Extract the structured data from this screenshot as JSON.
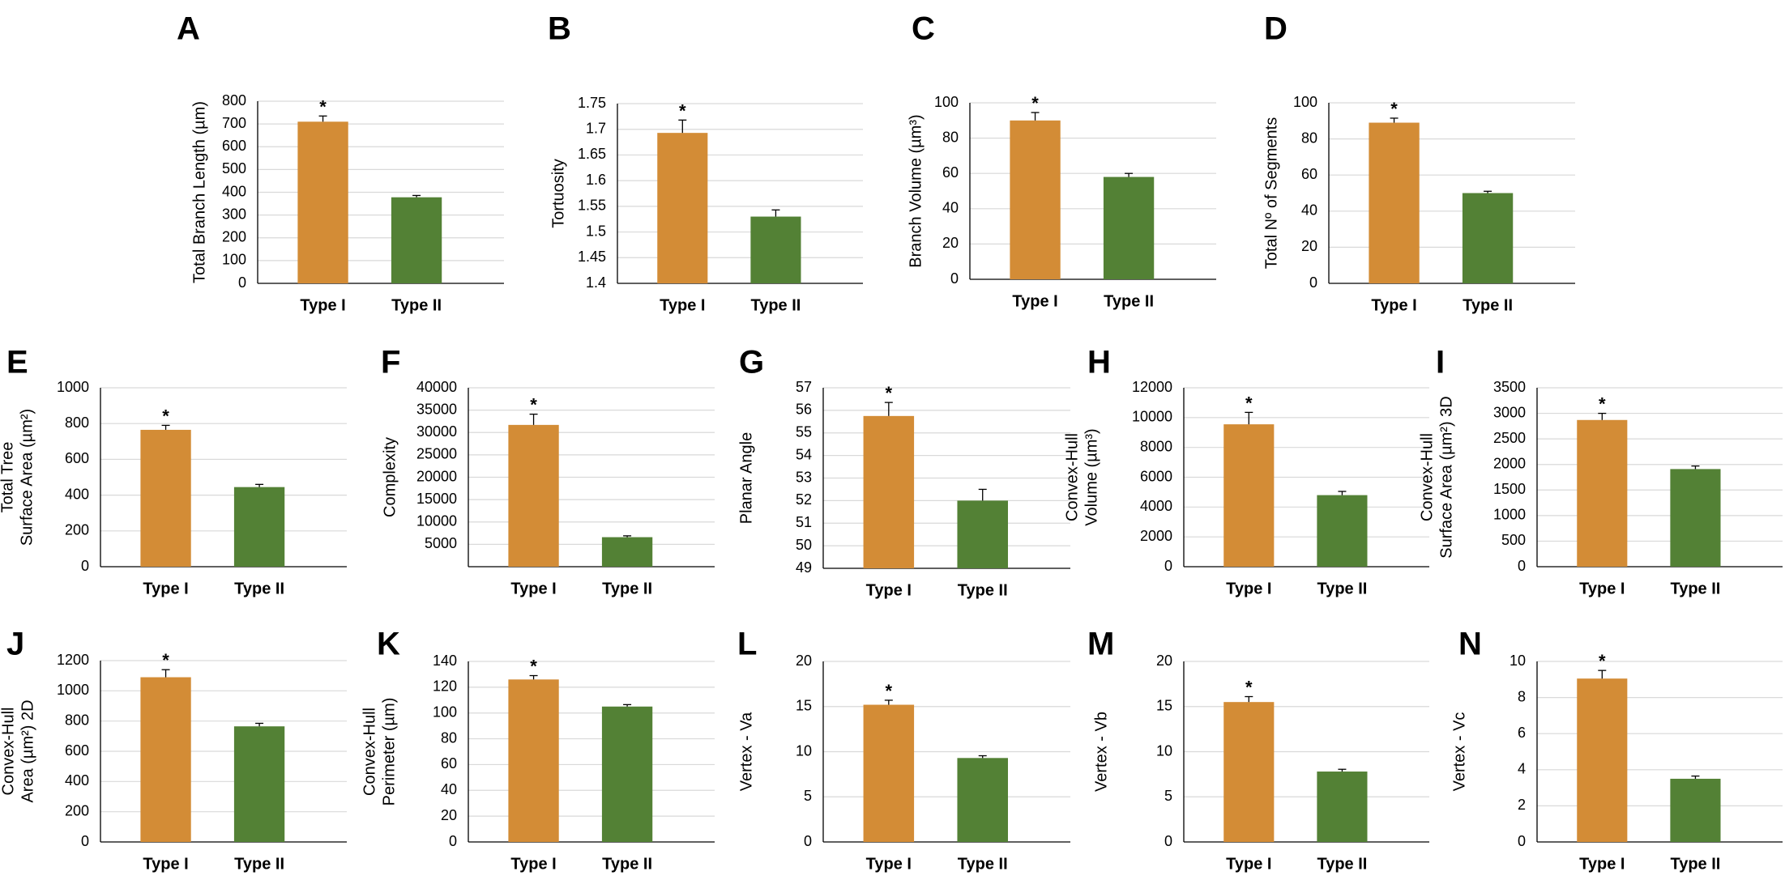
{
  "colors": {
    "type1": "#d38c36",
    "type2": "#538135",
    "grid": "#d9d9d9",
    "axis": "#000000"
  },
  "chart_data": [
    {
      "panel": "A",
      "type": "bar",
      "categories": [
        "Type I",
        "Type II"
      ],
      "values": [
        710,
        378
      ],
      "errors": [
        25,
        8
      ],
      "significance": [
        "*",
        ""
      ],
      "ylabel": [
        "Total Branch Length (µm)"
      ],
      "ylim": [
        0,
        800
      ],
      "yticks": [
        0,
        100,
        200,
        300,
        400,
        500,
        600,
        700,
        800
      ]
    },
    {
      "panel": "B",
      "type": "bar",
      "categories": [
        "Type I",
        "Type II"
      ],
      "values": [
        1.693,
        1.53
      ],
      "errors": [
        0.025,
        0.013
      ],
      "significance": [
        "*",
        ""
      ],
      "ylabel": [
        "Tortuosity"
      ],
      "ylim": [
        1.4,
        1.75
      ],
      "yticks": [
        1.4,
        1.45,
        1.5,
        1.55,
        1.6,
        1.65,
        1.7,
        1.75
      ]
    },
    {
      "panel": "C",
      "type": "bar",
      "categories": [
        "Type I",
        "Type II"
      ],
      "values": [
        90,
        58
      ],
      "errors": [
        4.5,
        2
      ],
      "significance": [
        "*",
        ""
      ],
      "ylabel": [
        "Branch Volume (µm³)"
      ],
      "ylim": [
        0,
        100
      ],
      "yticks": [
        0,
        20,
        40,
        60,
        80,
        100
      ]
    },
    {
      "panel": "D",
      "type": "bar",
      "categories": [
        "Type I",
        "Type II"
      ],
      "values": [
        89,
        50
      ],
      "errors": [
        2.5,
        1
      ],
      "significance": [
        "*",
        ""
      ],
      "ylabel": [
        "Total Nº of Segments"
      ],
      "ylim": [
        0,
        100
      ],
      "yticks": [
        0,
        20,
        40,
        60,
        80,
        100
      ]
    },
    {
      "panel": "E",
      "type": "bar",
      "categories": [
        "Type I",
        "Type II"
      ],
      "values": [
        765,
        445
      ],
      "errors": [
        25,
        15
      ],
      "significance": [
        "*",
        ""
      ],
      "ylabel": [
        "Total Tree",
        "Surface Area (µm²)"
      ],
      "ylim": [
        0,
        1000
      ],
      "yticks": [
        0,
        200,
        400,
        600,
        800,
        1000
      ]
    },
    {
      "panel": "F",
      "type": "bar",
      "categories": [
        "Type I",
        "Type II"
      ],
      "values": [
        31700,
        6600
      ],
      "errors": [
        2400,
        300
      ],
      "significance": [
        "*",
        ""
      ],
      "ylabel": [
        "Complexity"
      ],
      "ylim": [
        0,
        40000
      ],
      "yticks": [
        5000,
        10000,
        15000,
        20000,
        25000,
        30000,
        35000,
        40000
      ]
    },
    {
      "panel": "G",
      "type": "bar",
      "categories": [
        "Type I",
        "Type II"
      ],
      "values": [
        55.75,
        52.0
      ],
      "errors": [
        0.6,
        0.5
      ],
      "significance": [
        "*",
        ""
      ],
      "ylabel": [
        "Planar Angle"
      ],
      "ylim": [
        49,
        57
      ],
      "yticks": [
        49,
        50,
        51,
        52,
        53,
        54,
        55,
        56,
        57
      ]
    },
    {
      "panel": "H",
      "type": "bar",
      "categories": [
        "Type I",
        "Type II"
      ],
      "values": [
        9550,
        4800
      ],
      "errors": [
        800,
        250
      ],
      "significance": [
        "*",
        ""
      ],
      "ylabel": [
        "Convex-Hull",
        "Volume (µm³)"
      ],
      "ylim": [
        0,
        12000
      ],
      "yticks": [
        0,
        2000,
        4000,
        6000,
        8000,
        10000,
        12000
      ]
    },
    {
      "panel": "I",
      "type": "bar",
      "categories": [
        "Type I",
        "Type II"
      ],
      "values": [
        2870,
        1910
      ],
      "errors": [
        130,
        60
      ],
      "significance": [
        "*",
        ""
      ],
      "ylabel": [
        "Convex-Hull",
        "Surface Area (µm²) 3D"
      ],
      "ylim": [
        0,
        3500
      ],
      "yticks": [
        0,
        500,
        1000,
        1500,
        2000,
        2500,
        3000,
        3500
      ]
    },
    {
      "panel": "J",
      "type": "bar",
      "categories": [
        "Type I",
        "Type II"
      ],
      "values": [
        1090,
        765
      ],
      "errors": [
        50,
        20
      ],
      "significance": [
        "*",
        ""
      ],
      "ylabel": [
        "Convex-Hull",
        "Area (µm²) 2D"
      ],
      "ylim": [
        0,
        1200
      ],
      "yticks": [
        0,
        200,
        400,
        600,
        800,
        1000,
        1200
      ]
    },
    {
      "panel": "K",
      "type": "bar",
      "categories": [
        "Type I",
        "Type II"
      ],
      "values": [
        126,
        105
      ],
      "errors": [
        3,
        1.5
      ],
      "significance": [
        "*",
        ""
      ],
      "ylabel": [
        "Convex-Hull",
        "Perimeter (µm)"
      ],
      "ylim": [
        0,
        140
      ],
      "yticks": [
        0,
        20,
        40,
        60,
        80,
        100,
        120,
        140
      ]
    },
    {
      "panel": "L",
      "type": "bar",
      "categories": [
        "Type I",
        "Type II"
      ],
      "values": [
        15.2,
        9.3
      ],
      "errors": [
        0.5,
        0.25
      ],
      "significance": [
        "*",
        ""
      ],
      "ylabel": [
        "Vertex - Va"
      ],
      "ylim": [
        0,
        20
      ],
      "yticks": [
        0,
        5,
        10,
        15,
        20
      ]
    },
    {
      "panel": "M",
      "type": "bar",
      "categories": [
        "Type I",
        "Type II"
      ],
      "values": [
        15.5,
        7.8
      ],
      "errors": [
        0.6,
        0.25
      ],
      "significance": [
        "*",
        ""
      ],
      "ylabel": [
        "Vertex - Vb"
      ],
      "ylim": [
        0,
        20
      ],
      "yticks": [
        0,
        5,
        10,
        15,
        20
      ]
    },
    {
      "panel": "N",
      "type": "bar",
      "categories": [
        "Type I",
        "Type II"
      ],
      "values": [
        9.05,
        3.5
      ],
      "errors": [
        0.45,
        0.15
      ],
      "significance": [
        "*",
        ""
      ],
      "ylabel": [
        "Vertex - Vc"
      ],
      "ylim": [
        0,
        10
      ],
      "yticks": [
        0,
        2,
        4,
        6,
        8,
        10
      ]
    }
  ]
}
